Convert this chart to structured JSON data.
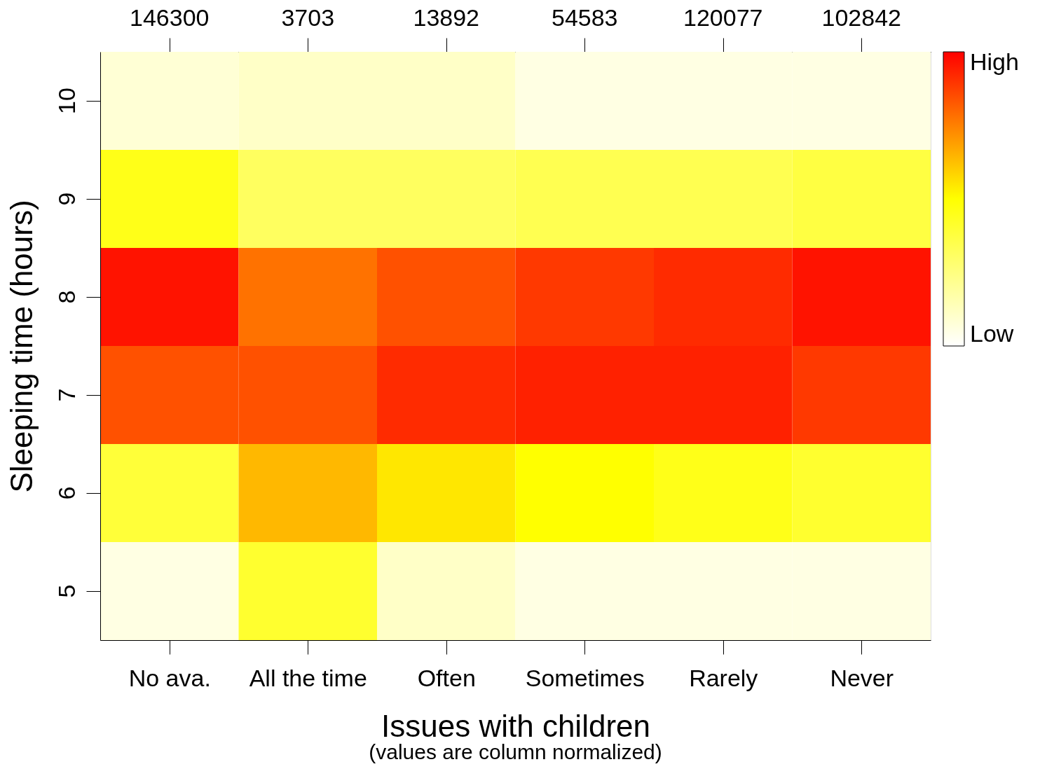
{
  "chart_data": {
    "type": "heatmap",
    "title": "Issues with children",
    "subtitle": "(values are column normalized)",
    "ylabel": "Sleeping time (hours)",
    "categories": [
      "No ava.",
      "All the time",
      "Often",
      "Sometimes",
      "Rarely",
      "Never"
    ],
    "y_categories": [
      "10",
      "9",
      "8",
      "7",
      "6",
      "5"
    ],
    "cells": [
      [
        0.05,
        0.08,
        0.08,
        0.02,
        0.02,
        0.02
      ],
      [
        0.45,
        0.3,
        0.3,
        0.33,
        0.33,
        0.36
      ],
      [
        1.0,
        0.8,
        0.87,
        0.92,
        0.95,
        1.0
      ],
      [
        0.87,
        0.87,
        0.95,
        0.97,
        0.97,
        0.92
      ],
      [
        0.38,
        0.65,
        0.55,
        0.5,
        0.45,
        0.4
      ],
      [
        0.02,
        0.4,
        0.08,
        0.02,
        0.02,
        0.02
      ]
    ],
    "colors": [
      "#ffffff",
      "#ffff80",
      "#ffff00",
      "#ff8000",
      "#ff0000"
    ],
    "clim": [
      -0.04,
      1.04
    ],
    "cticks": [
      {
        "value": 0,
        "label": "Low"
      },
      {
        "value": 1,
        "label": "High"
      }
    ],
    "annotations": [
      "146300",
      "3703",
      "13892",
      "54583",
      "120077",
      "102842"
    ]
  }
}
